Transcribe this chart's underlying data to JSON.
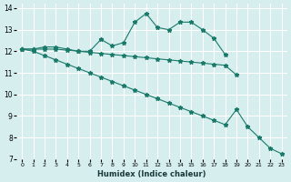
{
  "xlabel": "Humidex (Indice chaleur)",
  "ylabel": "",
  "bg_color": "#d6eeee",
  "grid_color": "#ffffff",
  "line_color": "#1a7a6a",
  "xlim": [
    -0.5,
    23.5
  ],
  "ylim": [
    7,
    14.2
  ],
  "yticks": [
    7,
    8,
    9,
    10,
    11,
    12,
    13,
    14
  ],
  "xticks": [
    0,
    1,
    2,
    3,
    4,
    5,
    6,
    7,
    8,
    9,
    10,
    11,
    12,
    13,
    14,
    15,
    16,
    17,
    18,
    19,
    20,
    21,
    22,
    23
  ],
  "line1_x": [
    0,
    1,
    2,
    3,
    4,
    5,
    6,
    7,
    8,
    9,
    10,
    11,
    12,
    13,
    14,
    15,
    16,
    17,
    18
  ],
  "line1_y": [
    12.1,
    12.1,
    12.2,
    12.2,
    12.1,
    12.0,
    12.0,
    12.55,
    12.25,
    12.4,
    13.35,
    13.75,
    13.1,
    13.0,
    13.35,
    13.35,
    13.0,
    12.6,
    11.85
  ],
  "line2_x": [
    0,
    1,
    2,
    3,
    4,
    5,
    6,
    7,
    8,
    9,
    10,
    11,
    12,
    13,
    14,
    15,
    16,
    17,
    18,
    19
  ],
  "line2_y": [
    12.1,
    12.1,
    12.1,
    12.1,
    12.05,
    12.0,
    11.95,
    11.9,
    11.85,
    11.8,
    11.75,
    11.7,
    11.65,
    11.6,
    11.55,
    11.5,
    11.45,
    11.4,
    11.35,
    10.9
  ],
  "line3_x": [
    0,
    1,
    2,
    3,
    4,
    5,
    6,
    7,
    8,
    9,
    10,
    11,
    12,
    13,
    14,
    15,
    16,
    17,
    18,
    19,
    20,
    21,
    22,
    23
  ],
  "line3_y": [
    12.1,
    12.0,
    11.8,
    11.6,
    11.4,
    11.2,
    11.0,
    10.8,
    10.6,
    10.4,
    10.2,
    10.0,
    9.8,
    9.6,
    9.4,
    9.2,
    9.0,
    8.8,
    8.6,
    9.3,
    8.5,
    8.0,
    7.5,
    7.25
  ]
}
